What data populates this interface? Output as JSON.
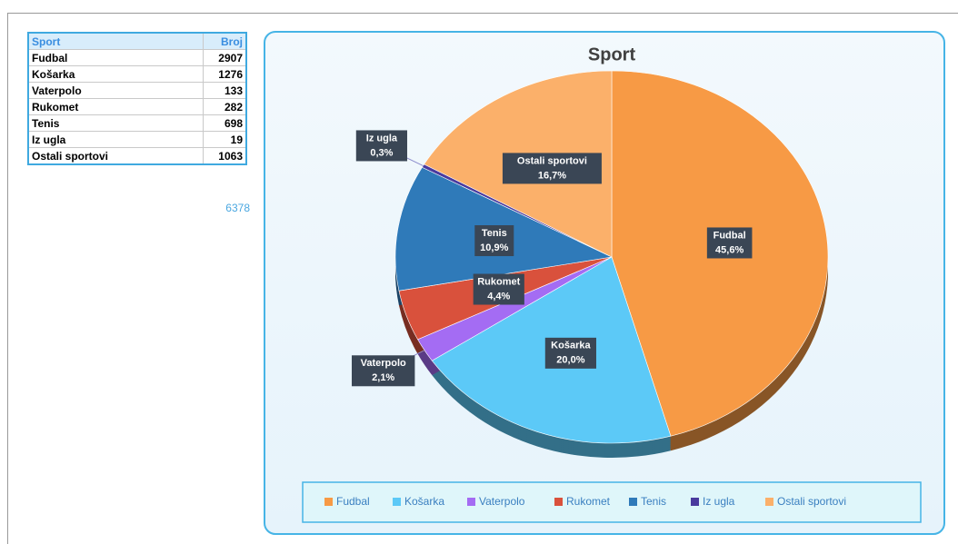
{
  "table": {
    "header": [
      "Sport",
      "Broj"
    ],
    "rows": [
      [
        "Fudbal",
        "2907"
      ],
      [
        "Košarka",
        "1276"
      ],
      [
        "Vaterpolo",
        "133"
      ],
      [
        "Rukomet",
        "282"
      ],
      [
        "Tenis",
        "698"
      ],
      [
        "Iz ugla",
        "19"
      ],
      [
        "Ostali sportovi",
        "1063"
      ]
    ],
    "total": "6378"
  },
  "chart_data": {
    "type": "pie",
    "title": "Sport",
    "categories": [
      "Fudbal",
      "Košarka",
      "Vaterpolo",
      "Rukomet",
      "Tenis",
      "Iz ugla",
      "Ostali sportovi"
    ],
    "values": [
      45.6,
      20.0,
      2.1,
      4.4,
      10.9,
      0.3,
      16.7
    ],
    "value_labels": [
      "45,6%",
      "20,0%",
      "2,1%",
      "4,4%",
      "10,9%",
      "0,3%",
      "16,7%"
    ],
    "colors": [
      "#f79a45",
      "#5cc9f7",
      "#a46cf3",
      "#d9513c",
      "#2f7ab9",
      "#4a3a9e",
      "#fbb06a"
    ],
    "legend": "bottom"
  }
}
